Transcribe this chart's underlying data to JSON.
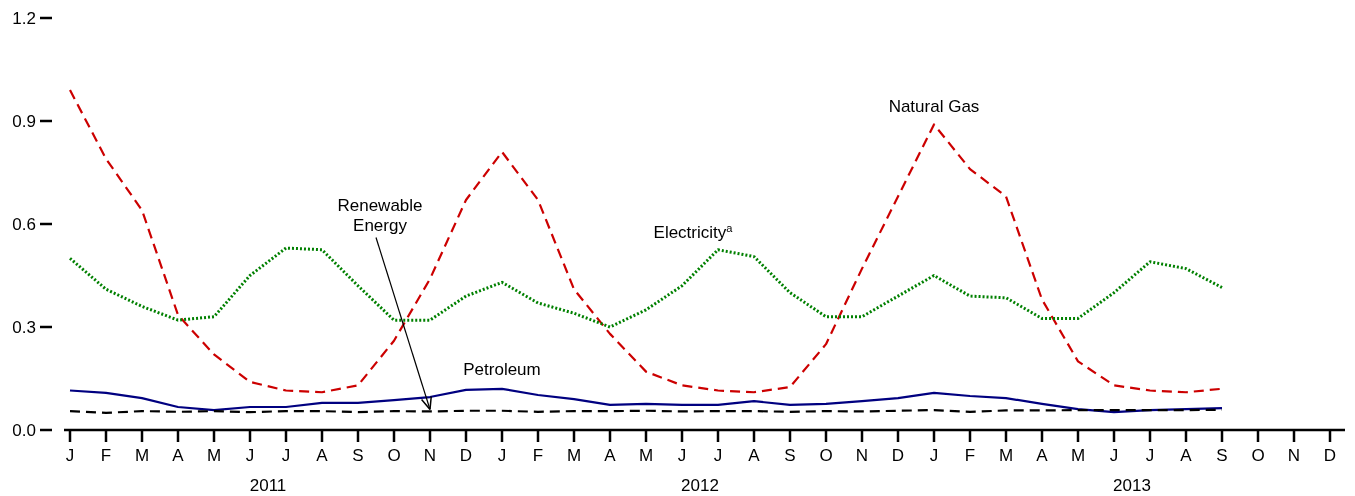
{
  "chart_data": {
    "type": "line",
    "categories": [
      "J",
      "F",
      "M",
      "A",
      "M",
      "J",
      "J",
      "A",
      "S",
      "O",
      "N",
      "D",
      "J",
      "F",
      "M",
      "A",
      "M",
      "J",
      "J",
      "A",
      "S",
      "O",
      "N",
      "D",
      "J",
      "F",
      "M",
      "A",
      "M",
      "J",
      "J",
      "A",
      "S",
      "O",
      "N",
      "D"
    ],
    "ylim": [
      0,
      1.2
    ],
    "yticks": [
      {
        "value": 0,
        "label": "0.0"
      },
      0.3,
      0.6,
      0.9,
      1.2
    ],
    "grid": false,
    "legend": false,
    "marker": "none",
    "annotations": [
      "2011",
      "2012",
      "2013"
    ],
    "series": [
      {
        "name": "Natural Gas",
        "color": "#cc0000",
        "line_style": "dashed",
        "values": [
          0.99,
          0.79,
          0.64,
          0.335,
          0.22,
          0.14,
          0.115,
          0.11,
          0.13,
          0.26,
          0.44,
          0.67,
          0.81,
          0.67,
          0.41,
          0.28,
          0.17,
          0.13,
          0.115,
          0.11,
          0.125,
          0.25,
          0.47,
          0.68,
          0.89,
          0.76,
          0.68,
          0.38,
          0.2,
          0.13,
          0.115,
          0.11,
          0.12,
          null,
          null,
          null
        ]
      },
      {
        "name": "Electricity$^{a}$",
        "color": "#008000",
        "line_style": "dotted",
        "values": [
          0.5,
          0.41,
          0.36,
          0.32,
          0.33,
          0.45,
          0.53,
          0.525,
          0.42,
          0.32,
          0.32,
          0.39,
          0.43,
          0.37,
          0.34,
          0.3,
          0.35,
          0.42,
          0.525,
          0.505,
          0.4,
          0.33,
          0.33,
          0.39,
          0.45,
          0.39,
          0.385,
          0.325,
          0.325,
          0.4,
          0.49,
          0.47,
          0.415,
          null,
          null,
          null
        ]
      },
      {
        "name": "Petroleum",
        "color": "#000080",
        "line_style": "solid",
        "values": [
          0.115,
          0.108,
          0.093,
          0.067,
          0.058,
          0.067,
          0.067,
          0.079,
          0.079,
          0.087,
          0.096,
          0.117,
          0.12,
          0.102,
          0.09,
          0.073,
          0.076,
          0.073,
          0.073,
          0.084,
          0.073,
          0.076,
          0.084,
          0.093,
          0.108,
          0.099,
          0.093,
          0.076,
          0.061,
          0.052,
          0.058,
          0.061,
          0.064,
          null,
          null,
          null
        ]
      },
      {
        "name": "Renewable Energy",
        "color": "#000000",
        "line_style": "dashed",
        "values": [
          0.055,
          0.05,
          0.055,
          0.053,
          0.055,
          0.052,
          0.055,
          0.055,
          0.052,
          0.055,
          0.054,
          0.056,
          0.056,
          0.053,
          0.055,
          0.055,
          0.056,
          0.054,
          0.055,
          0.055,
          0.053,
          0.055,
          0.054,
          0.056,
          0.058,
          0.053,
          0.057,
          0.057,
          0.058,
          0.058,
          0.058,
          0.058,
          0.059,
          null,
          null,
          null
        ]
      }
    ]
  }
}
